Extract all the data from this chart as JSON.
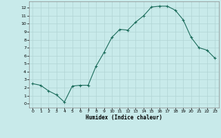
{
  "x": [
    0,
    1,
    2,
    3,
    4,
    5,
    6,
    7,
    8,
    9,
    10,
    11,
    12,
    13,
    14,
    15,
    16,
    17,
    18,
    19,
    20,
    21,
    22,
    23
  ],
  "y": [
    2.5,
    2.3,
    1.6,
    1.1,
    0.2,
    2.2,
    2.3,
    2.3,
    4.7,
    6.4,
    8.3,
    9.3,
    9.2,
    10.2,
    11.0,
    12.1,
    12.2,
    12.2,
    11.7,
    10.5,
    8.3,
    7.0,
    6.7,
    5.7
  ],
  "xlabel": "Humidex (Indice chaleur)",
  "xlim": [
    -0.5,
    23.5
  ],
  "ylim": [
    -0.5,
    12.8
  ],
  "yticks": [
    0,
    1,
    2,
    3,
    4,
    5,
    6,
    7,
    8,
    9,
    10,
    11,
    12
  ],
  "xticks": [
    0,
    1,
    2,
    3,
    4,
    5,
    6,
    7,
    8,
    9,
    10,
    11,
    12,
    13,
    14,
    15,
    16,
    17,
    18,
    19,
    20,
    21,
    22,
    23
  ],
  "line_color": "#1a6b5a",
  "marker": "+",
  "bg_color": "#c8eaea",
  "grid_color": "#b0d4d4",
  "axis_color": "#888888"
}
